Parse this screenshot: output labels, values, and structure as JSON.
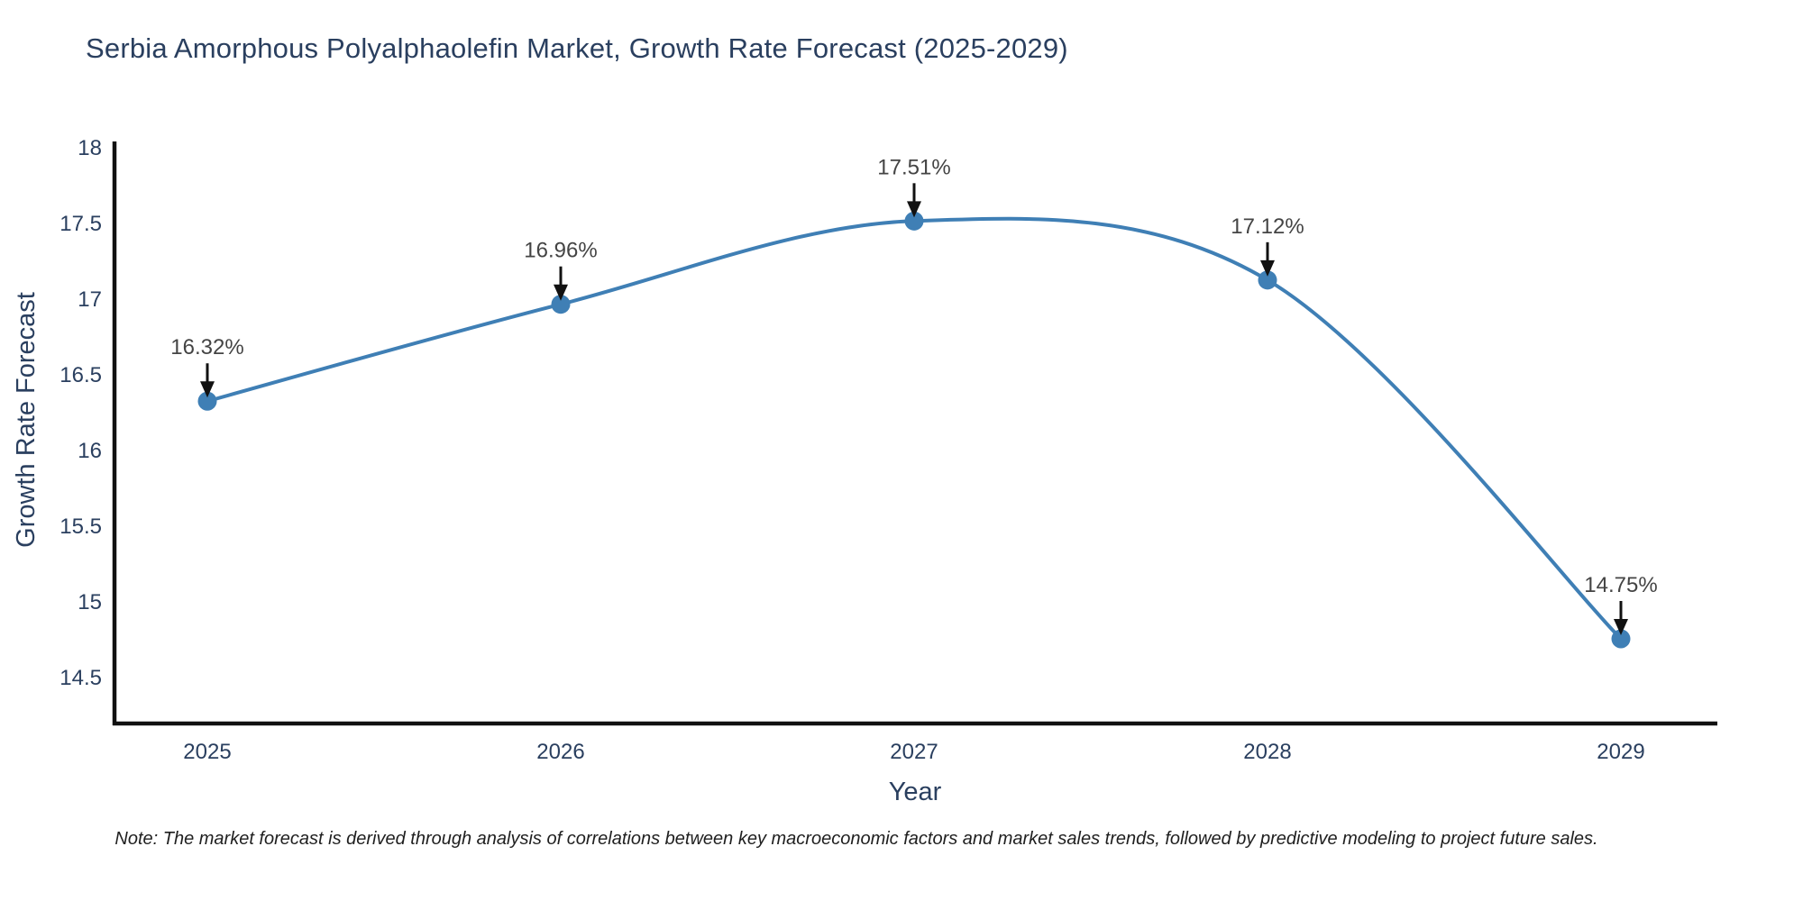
{
  "title": {
    "text": "Serbia Amorphous Polyalphaolefin Market, Growth Rate Forecast (2025-2029)"
  },
  "note": {
    "text": "Note: The market forecast is derived through analysis of correlations between key macroeconomic factors and market sales trends, followed by predictive modeling to project future sales."
  },
  "chart_data": {
    "type": "line",
    "title": "Serbia Amorphous Polyalphaolefin Market, Growth Rate Forecast (2025-2029)",
    "x": [
      2025,
      2026,
      2027,
      2028,
      2029
    ],
    "categories": [
      "2025",
      "2026",
      "2027",
      "2028",
      "2029"
    ],
    "series": [
      {
        "name": "Growth Rate Forecast",
        "values": [
          16.32,
          16.96,
          17.51,
          17.12,
          14.75
        ],
        "point_labels": [
          "16.32%",
          "16.96%",
          "17.51%",
          "17.12%",
          "14.75%"
        ]
      }
    ],
    "xlabel": "Year",
    "ylabel": "Growth Rate Forecast",
    "y_ticks": [
      14.5,
      15,
      15.5,
      16,
      16.5,
      17,
      17.5,
      18
    ],
    "y_tick_labels": [
      "14.5",
      "15",
      "15.5",
      "16",
      "16.5",
      "17",
      "17.5",
      "18"
    ],
    "ylim": [
      14.19,
      18.03
    ],
    "xlim": [
      2024.73,
      2029.27
    ],
    "line_shape": "spline",
    "markers": true,
    "grid": false,
    "legend": false,
    "annotations_have_arrows": true,
    "colors": {
      "line": "#3f7fb5",
      "marker": "#3f7fb5",
      "axis_line": "#111111",
      "tick_label": "#2a3f5f",
      "axis_title": "#2a3f5f",
      "chart_title": "#2a3f5f",
      "annotation_text": "#444444",
      "annotation_arrow": "#111111",
      "background": "#ffffff"
    }
  }
}
